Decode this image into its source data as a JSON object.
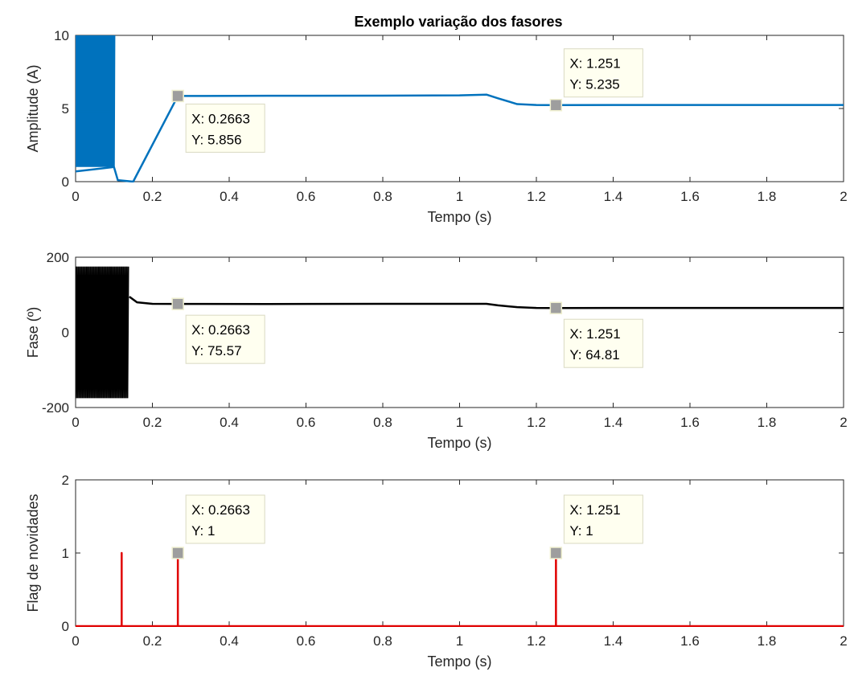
{
  "title": "Exemplo variação dos fasores",
  "chart_data": [
    {
      "type": "line",
      "ylabel": "Amplitude (A)",
      "xlabel": "Tempo (s)",
      "xlim": [
        0,
        2
      ],
      "ylim": [
        0,
        10
      ],
      "xticks": [
        "0",
        "0.2",
        "0.4",
        "0.6",
        "0.8",
        "1",
        "1.2",
        "1.4",
        "1.6",
        "1.8",
        "2"
      ],
      "yticks": [
        "0",
        "5",
        "10"
      ],
      "color": "#0072BD",
      "grid": false,
      "series": [
        {
          "x": [
            0,
            0.1,
            0.11,
            0.15,
            0.2663,
            0.3,
            0.5,
            0.8,
            1.0,
            1.07,
            1.1,
            1.15,
            1.2,
            1.251,
            1.4,
            1.6,
            1.8,
            2.0
          ],
          "y": [
            0.7,
            1.0,
            0.1,
            0.0,
            5.856,
            5.86,
            5.87,
            5.88,
            5.9,
            5.95,
            5.7,
            5.3,
            5.24,
            5.235,
            5.24,
            5.24,
            5.24,
            5.24
          ]
        }
      ],
      "oscillation": {
        "x_range": [
          0,
          0.1
        ],
        "y_range": [
          1.0,
          10.0
        ],
        "inner_level": 4.8
      },
      "datatips": [
        {
          "x": 0.2663,
          "y": 5.856,
          "xtext": "X: 0.2663",
          "ytext": "Y: 5.856"
        },
        {
          "x": 1.251,
          "y": 5.235,
          "xtext": "X: 1.251",
          "ytext": "Y: 5.235"
        }
      ]
    },
    {
      "type": "line",
      "ylabel": "Fase (º)",
      "xlabel": "Tempo (s)",
      "xlim": [
        0,
        2
      ],
      "ylim": [
        -200,
        200
      ],
      "xticks": [
        "0",
        "0.2",
        "0.4",
        "0.6",
        "0.8",
        "1",
        "1.2",
        "1.4",
        "1.6",
        "1.8",
        "2"
      ],
      "yticks": [
        "-200",
        "0",
        "200"
      ],
      "color": "#000000",
      "grid": false,
      "series": [
        {
          "x": [
            0.14,
            0.16,
            0.2,
            0.2663,
            0.5,
            0.8,
            1.0,
            1.07,
            1.1,
            1.15,
            1.2,
            1.251,
            1.4,
            1.6,
            1.8,
            2.0
          ],
          "y": [
            95,
            80,
            76,
            75.57,
            75.5,
            76,
            76,
            76,
            72,
            67,
            65,
            64.81,
            65,
            65,
            65,
            65
          ]
        }
      ],
      "oscillation": {
        "x_range": [
          0,
          0.135
        ],
        "y_range": [
          -175,
          175
        ]
      },
      "datatips": [
        {
          "x": 0.2663,
          "y": 75.57,
          "xtext": "X: 0.2663",
          "ytext": "Y: 75.57"
        },
        {
          "x": 1.251,
          "y": 64.81,
          "xtext": "X: 1.251",
          "ytext": "Y: 64.81"
        }
      ]
    },
    {
      "type": "line",
      "ylabel": "Flag de novidades",
      "xlabel": "Tempo (s)",
      "xlim": [
        0,
        2
      ],
      "ylim": [
        0,
        2
      ],
      "xticks": [
        "0",
        "0.2",
        "0.4",
        "0.6",
        "0.8",
        "1",
        "1.2",
        "1.4",
        "1.6",
        "1.8",
        "2"
      ],
      "yticks": [
        "0",
        "1",
        "2"
      ],
      "color": "#E00000",
      "grid": false,
      "series": [
        {
          "x": [
            0,
            0.12,
            0.12,
            0.12,
            0.2663,
            0.2663,
            0.2663,
            1.251,
            1.251,
            1.251,
            2.0
          ],
          "y": [
            0,
            0,
            1,
            0,
            0,
            1,
            0,
            0,
            1,
            0,
            0
          ]
        }
      ],
      "datatips": [
        {
          "x": 0.2663,
          "y": 1,
          "xtext": "X: 0.2663",
          "ytext": "Y: 1"
        },
        {
          "x": 1.251,
          "y": 1,
          "xtext": "X: 1.251",
          "ytext": "Y: 1"
        }
      ]
    }
  ]
}
